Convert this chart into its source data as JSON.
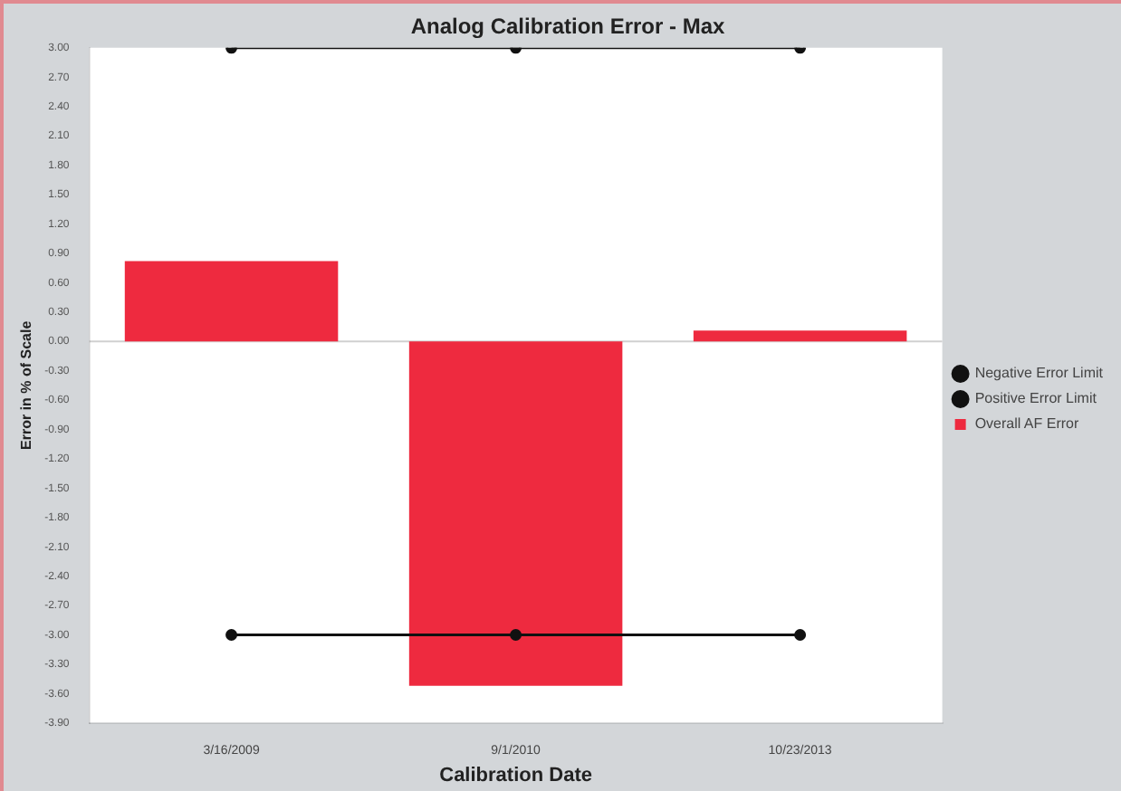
{
  "chart_data": {
    "type": "bar",
    "title": "Analog Calibration Error - Max",
    "xlabel": "Calibration Date",
    "ylabel": "Error in % of Scale",
    "categories": [
      "3/16/2009",
      "9/1/2010",
      "10/23/2013"
    ],
    "series": [
      {
        "name": "Negative Error Limit",
        "type": "line",
        "color": "#111111",
        "values": [
          -3.0,
          -3.0,
          -3.0
        ],
        "marker": "circle"
      },
      {
        "name": "Positive Error Limit",
        "type": "line",
        "color": "#111111",
        "values": [
          3.0,
          3.0,
          3.0
        ],
        "marker": "circle"
      },
      {
        "name": "Overall AF Error",
        "color": "#ee2a3f",
        "values": [
          0.82,
          -3.52,
          0.11
        ]
      }
    ],
    "ylim": [
      -3.9,
      3.0
    ],
    "yticks": [
      {
        "value": 3,
        "label": "3.00"
      },
      {
        "value": 2.7,
        "label": "2.70"
      },
      {
        "value": 2.4,
        "label": "2.40"
      },
      {
        "value": 2.1,
        "label": "2.10"
      },
      {
        "value": 1.8,
        "label": "1.80"
      },
      {
        "value": 1.5,
        "label": "1.50"
      },
      {
        "value": 1.2,
        "label": "1.20"
      },
      {
        "value": 0.9,
        "label": "0.90"
      },
      {
        "value": 0.6,
        "label": "0.60"
      },
      {
        "value": 0.3,
        "label": "0.30"
      },
      {
        "value": 0,
        "label": "0.00"
      },
      {
        "value": -0.3,
        "label": "-0.30"
      },
      {
        "value": -0.6,
        "label": "-0.60"
      },
      {
        "value": -0.9,
        "label": "-0.90"
      },
      {
        "value": -1.2,
        "label": "-1.20"
      },
      {
        "value": -1.5,
        "label": "-1.50"
      },
      {
        "value": -1.8,
        "label": "-1.80"
      },
      {
        "value": -2.1,
        "label": "-2.10"
      },
      {
        "value": -2.4,
        "label": "-2.40"
      },
      {
        "value": -2.7,
        "label": "-2.70"
      },
      {
        "value": -3.0,
        "label": "-3.00"
      },
      {
        "value": -3.3,
        "label": "-3.30"
      },
      {
        "value": -3.6,
        "label": "-3.60"
      },
      {
        "value": -3.9,
        "label": "-3.90"
      }
    ],
    "ref_lines": [
      {
        "axis": "y",
        "value": 0,
        "color": "#d0d0d0"
      }
    ],
    "grid": false,
    "legend": "right"
  }
}
